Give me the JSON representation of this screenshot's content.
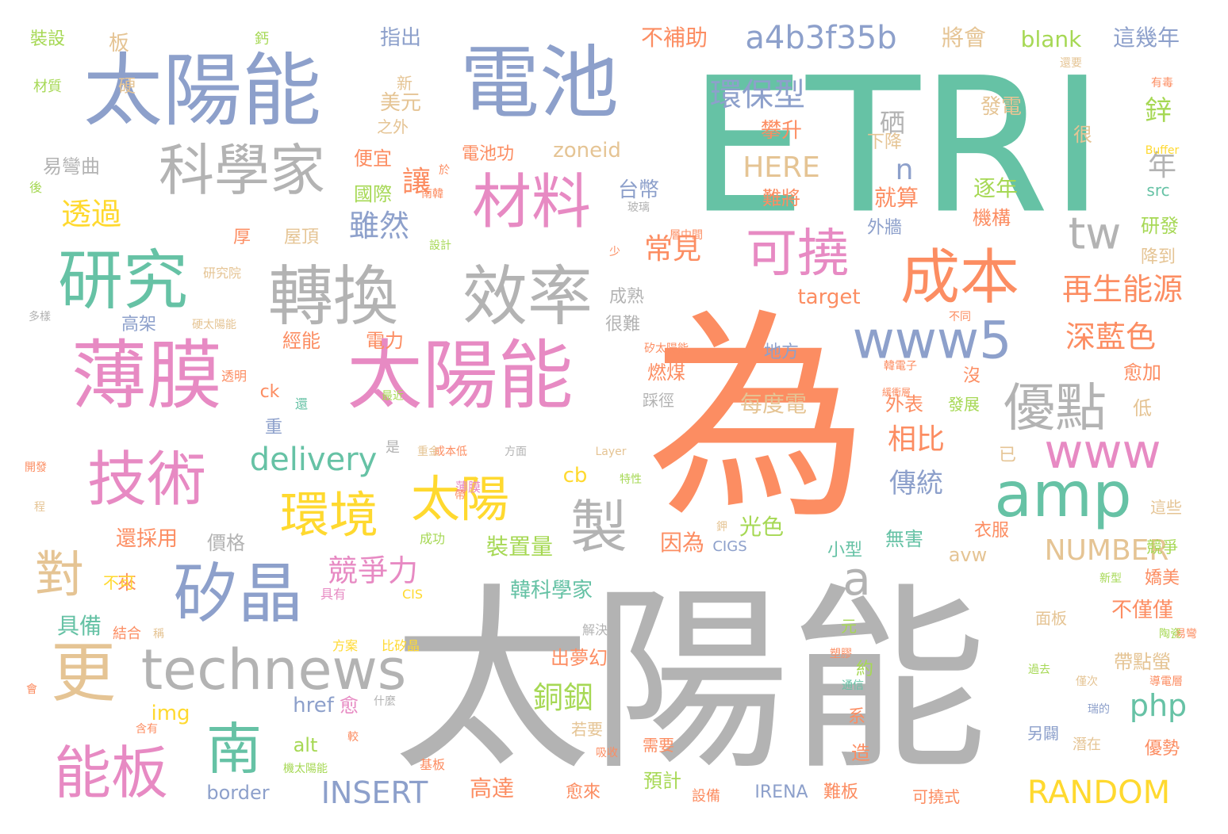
{
  "words": [
    "太陽能",
    "ETRI",
    "為",
    "太陽能",
    "電池",
    "薄膜",
    "太陽能",
    "科學家",
    "研究",
    "轉換",
    "效率",
    "材料",
    "矽晶",
    "成本",
    "技術",
    "可撓",
    "amp",
    "更",
    "technews",
    "www5",
    "優點",
    "www",
    "環境",
    "太陽",
    "能板",
    "南",
    "對",
    "製",
    "a4b3f35b",
    "delivery",
    "tw",
    "環保型",
    "a",
    "再生能源",
    "深藍色",
    "競爭力",
    "常見",
    "雖然",
    "透過",
    "讓",
    "php",
    "RANDOM",
    "INSERT",
    "NUMBER",
    "銅銦",
    "相比",
    "傳統",
    "HERE",
    "n",
    "年",
    "硒",
    "鋅",
    "發電",
    "blank",
    "將會",
    "這幾年",
    "不補助",
    "指出",
    "板",
    "裝設",
    "鈣",
    "材質",
    "硬",
    "易彎曲",
    "後",
    "美元",
    "新",
    "之外",
    "攀升",
    "下降",
    "很",
    "就算",
    "逐年",
    "機構",
    "研發",
    "降到",
    "src",
    "便宜",
    "國際",
    "電池功",
    "zoneid",
    "台幣",
    "難將",
    "外牆",
    "厚",
    "屋頂",
    "高架",
    "經能",
    "電力",
    "成熟",
    "target",
    "很難",
    "燃煤",
    "地方",
    "愈加",
    "每度電",
    "踩徑",
    "外表",
    "沒",
    "發展",
    "低",
    "已",
    "ck",
    "重",
    "cb",
    "光色",
    "因為",
    "裝置量",
    "衣服",
    "avw",
    "嬌美",
    "無害",
    "小型",
    "具備",
    "來",
    "還採用",
    "價格",
    "不可",
    "韓科學家",
    "不僅僅",
    "元",
    "出夢幻",
    "帶點螢",
    "約",
    "img",
    "href",
    "愈",
    "系",
    "造",
    "alt",
    "border",
    "高達",
    "愈來",
    "預計",
    "難板",
    "優勢",
    "IRENA",
    "可撓式",
    "設備",
    "需要",
    "若要",
    "基板",
    "潛在",
    "另闢",
    "面板",
    "這些",
    "競爭",
    "是",
    "易彎",
    "薄膜",
    "CIGS",
    "CIS",
    "成功",
    "具有",
    "方案",
    "比矽晶",
    "什麼",
    "解決",
    "結合",
    "稱",
    "機太陽能",
    "多樣",
    "研究院",
    "硬太陽能",
    "矽太陽能",
    "開發",
    "程",
    "透明",
    "最近",
    "還",
    "成本低",
    "方面",
    "重金",
    "特性",
    "Layer",
    "Buffer",
    "有毒",
    "還要",
    "於",
    "南韓",
    "設計",
    "少",
    "玻璃",
    "層中間",
    "不同",
    "韓電子",
    "緩衝層",
    "帶",
    "鉀",
    "塑膠",
    "陶瓷",
    "新型",
    "過去",
    "僅次",
    "導電層",
    "通信",
    "瑞的",
    "吸收",
    "較",
    "含有",
    "會"
  ],
  "colors": {
    "gray": "#b3b3b3",
    "teal": "#66c2a5",
    "orange": "#fc8d62",
    "blue": "#8da0cb",
    "pink": "#e78ac3",
    "green": "#a6d854",
    "yellow": "#ffd92f",
    "tan": "#e5c494"
  }
}
